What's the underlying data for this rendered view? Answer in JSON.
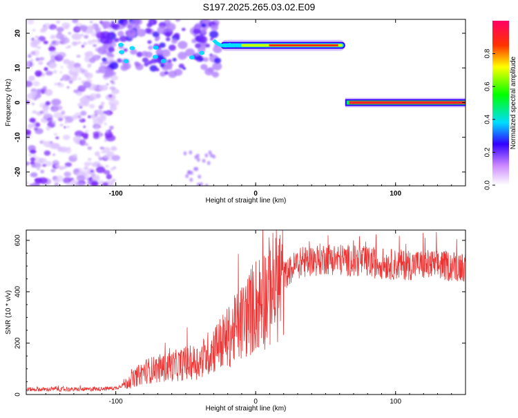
{
  "title": "S197.2025.265.03.02.E09",
  "chart_data": [
    {
      "type": "heatmap",
      "xlabel": "Height of straight line (km)",
      "ylabel": "Frequency (Hz)",
      "xlim": [
        -164,
        150
      ],
      "ylim": [
        -24,
        24
      ],
      "xticks": [
        -100,
        0,
        100
      ],
      "yticks": [
        -20,
        -10,
        0,
        10,
        20
      ],
      "colorbar": {
        "label": "Normalized spectral amplitude",
        "range": [
          0,
          1
        ],
        "ticks": [
          0.0,
          0.2,
          0.4,
          0.6,
          0.8
        ]
      },
      "features": [
        {
          "x_range": [
            -164,
            -100
          ],
          "frequency_range": [
            -24,
            24
          ],
          "amplitude": 0.1
        },
        {
          "x_range": [
            -110,
            -25
          ],
          "frequency_range": [
            8,
            24
          ],
          "amplitude": 0.2
        },
        {
          "x_range": [
            -30,
            64
          ],
          "frequency": 16.5,
          "amplitude": 0.85
        },
        {
          "x_range": [
            64,
            150
          ],
          "frequency": 0,
          "amplitude": 0.9
        }
      ]
    },
    {
      "type": "line",
      "xlabel": "Height of straight line (km)",
      "ylabel": "SNR (10 * v/v)",
      "xlim": [
        -164,
        150
      ],
      "ylim": [
        0,
        640
      ],
      "xticks": [
        -100,
        0,
        100
      ],
      "yticks": [
        0,
        200,
        400,
        600
      ],
      "color": "#ee3333",
      "x": [
        -164,
        -140,
        -120,
        -100,
        -90,
        -80,
        -60,
        -40,
        -30,
        -20,
        -10,
        0,
        10,
        20,
        30,
        50,
        70,
        90,
        100,
        120,
        140,
        150
      ],
      "y": [
        20,
        20,
        20,
        25,
        50,
        90,
        110,
        130,
        180,
        220,
        280,
        350,
        400,
        460,
        510,
        530,
        520,
        510,
        505,
        505,
        500,
        500
      ]
    }
  ]
}
